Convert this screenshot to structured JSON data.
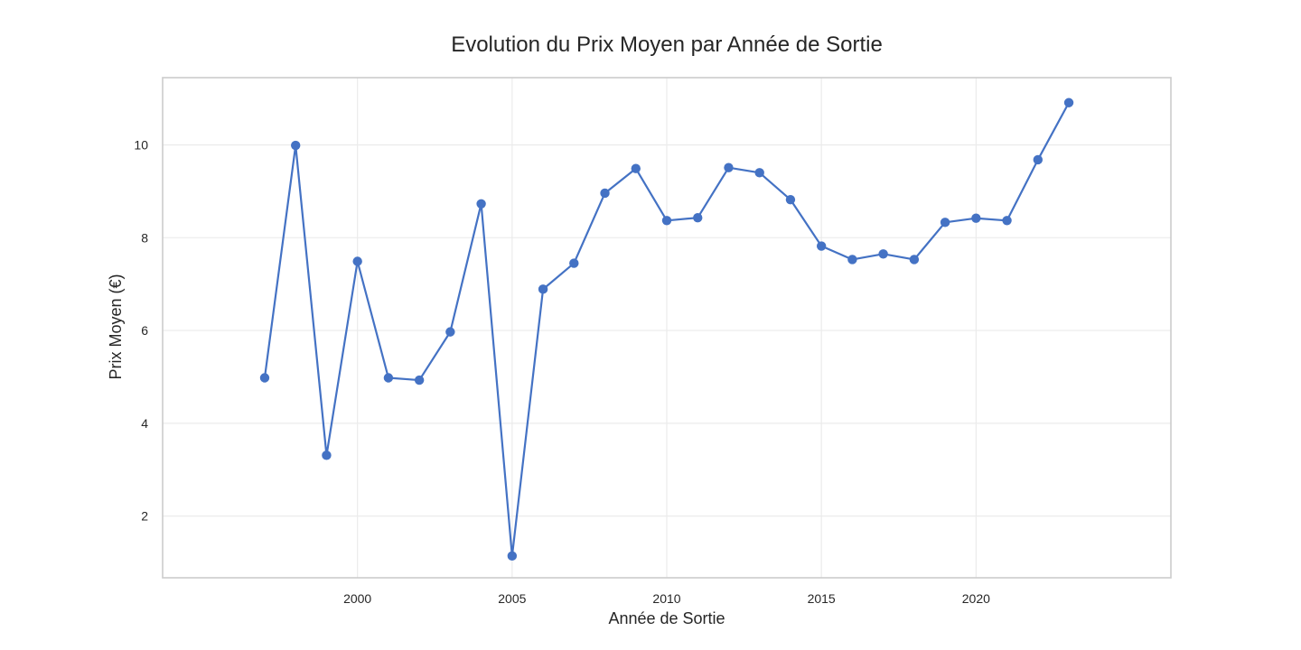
{
  "chart_data": {
    "type": "line",
    "title": "Evolution du Prix Moyen par Année de Sortie",
    "xlabel": "Année de Sortie",
    "ylabel": "Prix Moyen (€)",
    "x": [
      1997,
      1998,
      1999,
      2000,
      2001,
      2002,
      2003,
      2004,
      2005,
      2006,
      2007,
      2008,
      2009,
      2010,
      2011,
      2012,
      2013,
      2014,
      2015,
      2016,
      2017,
      2018,
      2019,
      2020,
      2021,
      2022,
      2023
    ],
    "series": [
      {
        "values": [
          4.98,
          9.99,
          3.31,
          7.49,
          4.98,
          4.93,
          5.97,
          8.73,
          1.14,
          6.89,
          7.45,
          8.96,
          9.49,
          8.37,
          8.43,
          9.51,
          9.4,
          8.82,
          7.82,
          7.53,
          7.65,
          7.53,
          8.33,
          8.42,
          8.37,
          9.68,
          10.91
        ],
        "color": "#4472c4"
      }
    ],
    "xlim": [
      1993.7,
      2026.3
    ],
    "ylim": [
      0.67,
      11.45
    ],
    "xticks": [
      2000,
      2005,
      2010,
      2015,
      2020
    ],
    "yticks": [
      2,
      4,
      6,
      8,
      10
    ],
    "grid": true,
    "legend": "none"
  }
}
